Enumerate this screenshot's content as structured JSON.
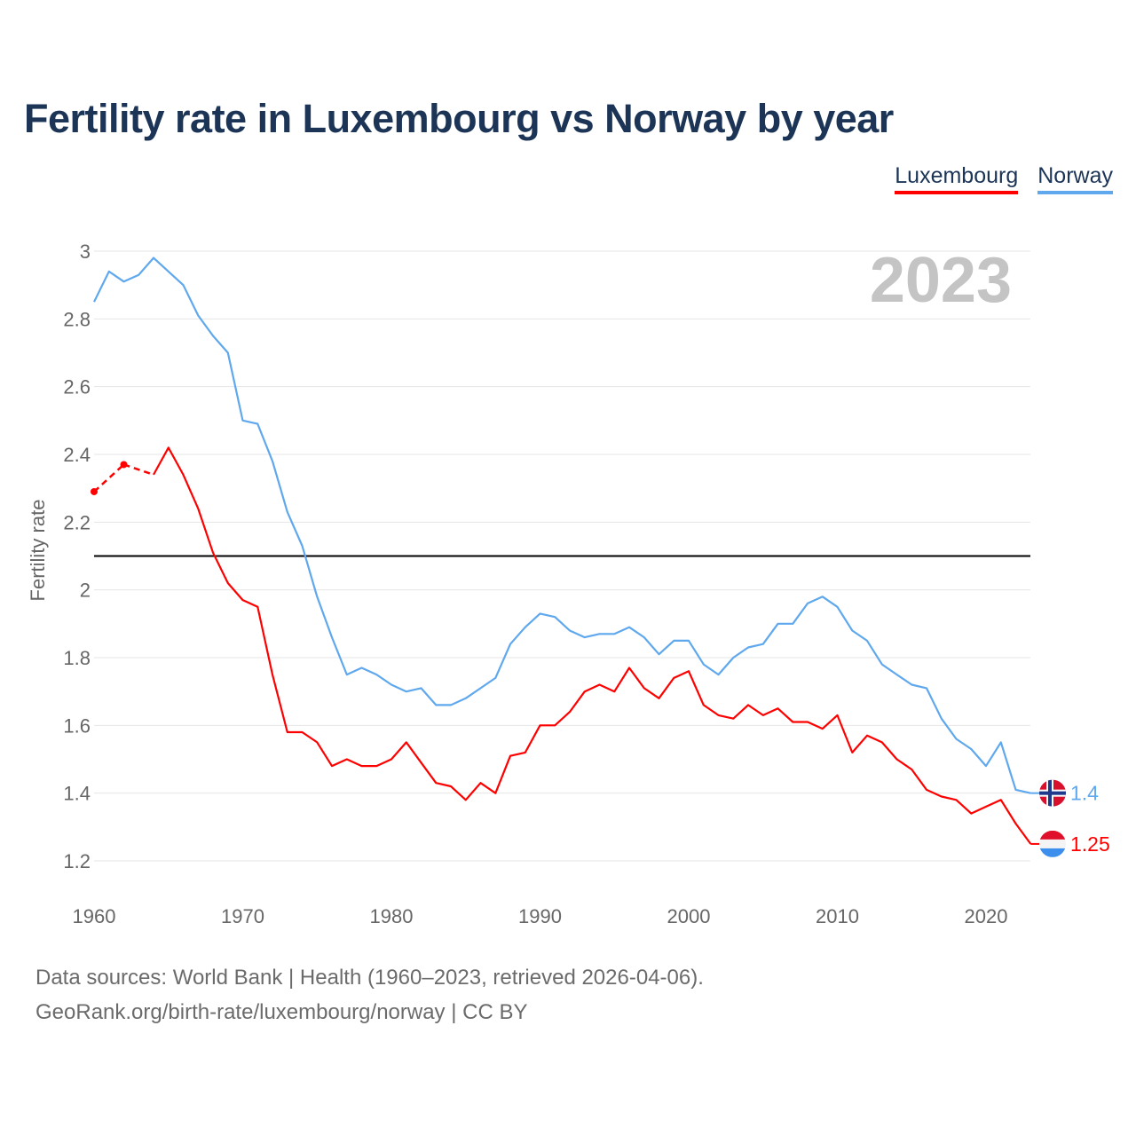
{
  "chart_data": {
    "type": "line",
    "title": "Fertility rate in Luxembourg vs Norway by year",
    "xlabel": "",
    "ylabel": "Fertility rate",
    "xlim": [
      1960,
      2023
    ],
    "ylim": [
      1.2,
      3.0
    ],
    "x_ticks": [
      "1960",
      "1970",
      "1980",
      "1990",
      "2000",
      "2010",
      "2020"
    ],
    "y_ticks": [
      "1.2",
      "1.4",
      "1.6",
      "1.8",
      "2",
      "2.2",
      "2.4",
      "2.6",
      "2.8",
      "3"
    ],
    "year_label": "2023",
    "reference_line": 2.1,
    "legend_position": "top-right",
    "x": [
      1960,
      1961,
      1962,
      1963,
      1964,
      1965,
      1966,
      1967,
      1968,
      1969,
      1970,
      1971,
      1972,
      1973,
      1974,
      1975,
      1976,
      1977,
      1978,
      1979,
      1980,
      1981,
      1982,
      1983,
      1984,
      1985,
      1986,
      1987,
      1988,
      1989,
      1990,
      1991,
      1992,
      1993,
      1994,
      1995,
      1996,
      1997,
      1998,
      1999,
      2000,
      2001,
      2002,
      2003,
      2004,
      2005,
      2006,
      2007,
      2008,
      2009,
      2010,
      2011,
      2012,
      2013,
      2014,
      2015,
      2016,
      2017,
      2018,
      2019,
      2020,
      2021,
      2022,
      2023
    ],
    "series": [
      {
        "name": "Luxembourg",
        "color": "#ff0000",
        "end_label": "1.25",
        "values": [
          2.29,
          null,
          2.37,
          null,
          2.34,
          2.42,
          2.34,
          2.24,
          2.11,
          2.02,
          1.97,
          1.95,
          1.75,
          1.58,
          1.58,
          1.55,
          1.48,
          1.5,
          1.48,
          1.48,
          1.5,
          1.55,
          1.49,
          1.43,
          1.42,
          1.38,
          1.43,
          1.4,
          1.51,
          1.52,
          1.6,
          1.6,
          1.64,
          1.7,
          1.72,
          1.7,
          1.77,
          1.71,
          1.68,
          1.74,
          1.76,
          1.66,
          1.63,
          1.62,
          1.66,
          1.63,
          1.65,
          1.61,
          1.61,
          1.59,
          1.63,
          1.52,
          1.57,
          1.55,
          1.5,
          1.47,
          1.41,
          1.39,
          1.38,
          1.34,
          1.36,
          1.38,
          1.31,
          1.25
        ]
      },
      {
        "name": "Norway",
        "color": "#5fa8ee",
        "end_label": "1.4",
        "values": [
          2.85,
          2.94,
          2.91,
          2.93,
          2.98,
          2.94,
          2.9,
          2.81,
          2.75,
          2.7,
          2.5,
          2.49,
          2.38,
          2.23,
          2.13,
          1.98,
          1.86,
          1.75,
          1.77,
          1.75,
          1.72,
          1.7,
          1.71,
          1.66,
          1.66,
          1.68,
          1.71,
          1.74,
          1.84,
          1.89,
          1.93,
          1.92,
          1.88,
          1.86,
          1.87,
          1.87,
          1.89,
          1.86,
          1.81,
          1.85,
          1.85,
          1.78,
          1.75,
          1.8,
          1.83,
          1.84,
          1.9,
          1.9,
          1.96,
          1.98,
          1.95,
          1.88,
          1.85,
          1.78,
          1.75,
          1.72,
          1.71,
          1.62,
          1.56,
          1.53,
          1.48,
          1.55,
          1.41,
          1.4
        ]
      }
    ]
  },
  "footer": {
    "line1": "Data sources: World Bank | Health (1960–2023, retrieved 2026-04-06).",
    "line2": "GeoRank.org/birth-rate/luxembourg/norway | CC BY"
  }
}
